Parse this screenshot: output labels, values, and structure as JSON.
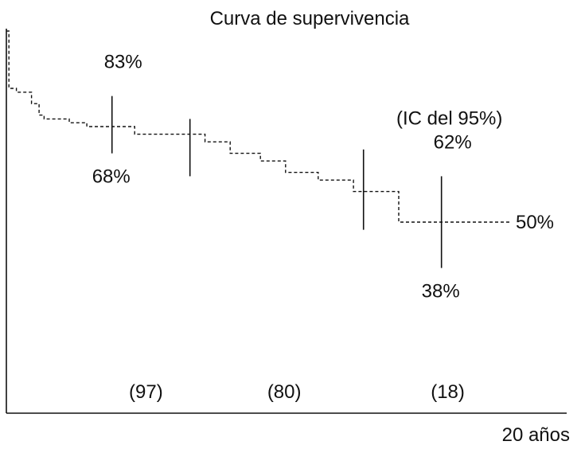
{
  "chart_data": {
    "type": "line",
    "title": "Curva de supervivencia",
    "xlabel": "20 años",
    "ylabel": "",
    "grid": false,
    "xlim": [
      0,
      20
    ],
    "ylim": [
      0,
      100
    ],
    "series": [
      {
        "style": "dashed-step",
        "points": [
          {
            "x": 0.0,
            "y": 100
          },
          {
            "x": 0.1,
            "y": 85
          },
          {
            "x": 0.4,
            "y": 84
          },
          {
            "x": 1.0,
            "y": 81
          },
          {
            "x": 1.3,
            "y": 78
          },
          {
            "x": 1.5,
            "y": 77
          },
          {
            "x": 2.5,
            "y": 76
          },
          {
            "x": 3.2,
            "y": 75
          },
          {
            "x": 5.1,
            "y": 73
          },
          {
            "x": 7.9,
            "y": 71
          },
          {
            "x": 8.9,
            "y": 68
          },
          {
            "x": 10.1,
            "y": 66
          },
          {
            "x": 11.1,
            "y": 63
          },
          {
            "x": 12.4,
            "y": 61
          },
          {
            "x": 13.8,
            "y": 58
          },
          {
            "x": 15.6,
            "y": 50
          },
          {
            "x": 18.3,
            "y": 50
          }
        ]
      }
    ],
    "confidence_intervals": [
      {
        "x": 4.2,
        "low": 68,
        "high": 83,
        "low_label": "68%",
        "high_label": "83%"
      },
      {
        "x": 7.3,
        "low": 62,
        "high": 77
      },
      {
        "x": 14.2,
        "low": 48,
        "high": 69
      },
      {
        "x": 17.3,
        "low": 38,
        "high": 62,
        "low_label": "38%",
        "high_label": "62%",
        "header": "(IC del 95%)"
      }
    ],
    "end_label": "50%",
    "at_risk": [
      {
        "x": 4.6,
        "label": "(97)"
      },
      {
        "x": 10.1,
        "label": "(80)"
      },
      {
        "x": 16.6,
        "label": "(18)"
      }
    ]
  }
}
